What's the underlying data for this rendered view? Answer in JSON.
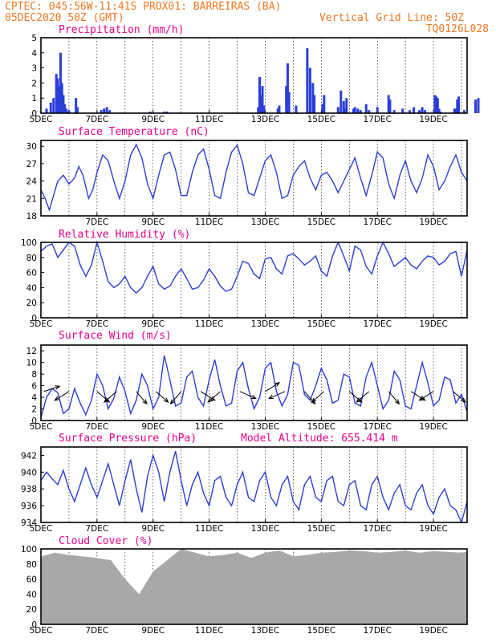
{
  "header": {
    "line1_left": "CPTEC:   045:56W-11:41S   PROX01: BARREIRAS (BA)",
    "line2_left": "05DEC2020 50Z (GMT)",
    "line2_right": "Vertical Grid Line: 50Z",
    "line3_right": "TQ0126L028"
  },
  "colors": {
    "header": "#f07820",
    "title": "#e8008a",
    "series": "#2a3ed8",
    "cloud": "#a8a8a8"
  },
  "chart_data": [
    {
      "type": "bar",
      "title": "Precipitation (mm/h)",
      "yticks": [
        0,
        1,
        2,
        3,
        4,
        5
      ],
      "ylim": [
        0,
        5
      ],
      "xticks": [
        "5DEC",
        "7DEC",
        "9DEC",
        "11DEC",
        "13DEC",
        "15DEC",
        "17DEC",
        "19DEC"
      ],
      "x": [
        0.2,
        0.35,
        0.45,
        0.55,
        0.6,
        0.65,
        0.7,
        0.75,
        0.8,
        0.85,
        0.9,
        0.95,
        1.0,
        1.25,
        1.3,
        2.15,
        2.25,
        2.35,
        2.45,
        3.9,
        4.4,
        4.5,
        7.75,
        7.8,
        7.85,
        7.9,
        7.95,
        8.45,
        8.5,
        8.75,
        8.8,
        8.85,
        9.1,
        9.5,
        9.6,
        9.7,
        9.75,
        10.05,
        10.1,
        10.6,
        10.7,
        10.8,
        10.85,
        10.9,
        11.15,
        11.2,
        11.3,
        11.4,
        11.6,
        11.7,
        12.0,
        12.4,
        12.45,
        12.6,
        12.9,
        13.15,
        13.3,
        13.5,
        13.6,
        13.7,
        14.05,
        14.1,
        14.15,
        14.2,
        14.25,
        14.75,
        14.8,
        14.85,
        14.9,
        15.1,
        15.5,
        15.6
      ],
      "values": [
        0.3,
        0.7,
        1.0,
        2.6,
        2.3,
        1.8,
        4.0,
        2.0,
        1.2,
        0.6,
        0.3,
        0.1,
        0.2,
        1.0,
        0.4,
        0.2,
        0.3,
        0.4,
        0.2,
        0.1,
        0.1,
        0.1,
        0.4,
        2.4,
        1.2,
        1.8,
        0.5,
        0.3,
        0.5,
        1.8,
        3.3,
        1.4,
        0.5,
        4.3,
        3.0,
        2.0,
        1.2,
        0.6,
        1.2,
        0.4,
        1.5,
        0.8,
        0.3,
        1.0,
        0.3,
        0.4,
        0.3,
        0.2,
        0.6,
        0.2,
        0.4,
        1.2,
        0.9,
        0.2,
        0.3,
        0.2,
        0.4,
        0.2,
        0.4,
        0.2,
        1.2,
        1.1,
        1.0,
        0.3,
        0.1,
        0.3,
        0.3,
        0.9,
        1.1,
        0.2,
        0.9,
        1.0
      ]
    },
    {
      "type": "line",
      "title": "Surface Temperature (nC)",
      "yticks": [
        18,
        21,
        24,
        27,
        30
      ],
      "ylim": [
        18,
        31
      ],
      "xticks": [
        "7DEC",
        "9DEC",
        "11DEC",
        "13DEC",
        "15DEC",
        "17DEC",
        "19DEC"
      ],
      "x": [
        0,
        0.15,
        0.3,
        0.45,
        0.6,
        0.8,
        1.0,
        1.2,
        1.35,
        1.5,
        1.7,
        1.85,
        2.0,
        2.2,
        2.4,
        2.6,
        2.8,
        3.0,
        3.2,
        3.4,
        3.6,
        3.8,
        4.0,
        4.2,
        4.4,
        4.6,
        4.8,
        5.0,
        5.2,
        5.4,
        5.6,
        5.8,
        6.0,
        6.2,
        6.4,
        6.6,
        6.8,
        7.0,
        7.2,
        7.4,
        7.6,
        7.8,
        8.0,
        8.2,
        8.4,
        8.6,
        8.8,
        9.0,
        9.2,
        9.4,
        9.6,
        9.8,
        10.0,
        10.2,
        10.4,
        10.6,
        10.8,
        11.0,
        11.2,
        11.4,
        11.6,
        11.8,
        12.0,
        12.2,
        12.4,
        12.6,
        12.8,
        13.0,
        13.2,
        13.4,
        13.6,
        13.8,
        14.0,
        14.2,
        14.4,
        14.6,
        14.8,
        15.0,
        15.2
      ],
      "values": [
        22.5,
        21.0,
        19.0,
        21.5,
        24.0,
        25.0,
        23.5,
        24.5,
        26.5,
        25.0,
        21.0,
        22.5,
        25.5,
        28.5,
        27.5,
        24.0,
        21.0,
        24.0,
        28.5,
        30.3,
        28.0,
        23.5,
        21.0,
        25.0,
        28.5,
        29.0,
        26.0,
        21.5,
        21.5,
        25.5,
        28.5,
        29.5,
        26.0,
        21.5,
        21.0,
        25.5,
        29.0,
        30.2,
        27.0,
        22.0,
        21.5,
        24.5,
        27.5,
        28.5,
        25.5,
        21.0,
        21.5,
        25.0,
        26.5,
        27.5,
        24.5,
        22.5,
        25.0,
        25.5,
        24.0,
        22.0,
        24.0,
        26.0,
        28.0,
        24.5,
        21.5,
        25.0,
        29.0,
        28.0,
        23.5,
        21.0,
        25.0,
        27.5,
        24.0,
        22.0,
        24.5,
        28.5,
        26.5,
        22.5,
        24.0,
        26.5,
        28.5,
        25.5,
        24.0
      ]
    },
    {
      "type": "line",
      "title": "Relative Humidity (%)",
      "yticks": [
        0,
        20,
        40,
        60,
        80,
        100
      ],
      "ylim": [
        0,
        100
      ],
      "xticks": [
        "5DEC",
        "7DEC",
        "9DEC",
        "11DEC",
        "13DEC",
        "15DEC",
        "17DEC",
        "19DEC"
      ],
      "x": [
        0,
        0.2,
        0.4,
        0.6,
        0.8,
        1.0,
        1.2,
        1.4,
        1.6,
        1.8,
        2.0,
        2.2,
        2.4,
        2.6,
        2.8,
        3.0,
        3.2,
        3.4,
        3.6,
        3.8,
        4.0,
        4.2,
        4.4,
        4.6,
        4.8,
        5.0,
        5.2,
        5.4,
        5.6,
        5.8,
        6.0,
        6.2,
        6.4,
        6.6,
        6.8,
        7.0,
        7.2,
        7.4,
        7.6,
        7.8,
        8.0,
        8.2,
        8.4,
        8.6,
        8.8,
        9.0,
        9.2,
        9.4,
        9.6,
        9.8,
        10.0,
        10.2,
        10.4,
        10.6,
        10.8,
        11.0,
        11.2,
        11.4,
        11.6,
        11.8,
        12.0,
        12.2,
        12.4,
        12.6,
        12.8,
        13.0,
        13.2,
        13.4,
        13.6,
        13.8,
        14.0,
        14.2,
        14.4,
        14.6,
        14.8,
        15.0,
        15.2
      ],
      "values": [
        88,
        95,
        98,
        80,
        90,
        100,
        95,
        70,
        55,
        70,
        100,
        75,
        48,
        40,
        45,
        55,
        40,
        33,
        40,
        55,
        68,
        45,
        38,
        42,
        55,
        65,
        52,
        38,
        40,
        50,
        65,
        55,
        42,
        35,
        38,
        55,
        75,
        72,
        58,
        52,
        78,
        80,
        65,
        58,
        82,
        85,
        78,
        70,
        75,
        82,
        62,
        55,
        82,
        100,
        82,
        62,
        95,
        90,
        68,
        58,
        82,
        100,
        85,
        68,
        74,
        80,
        70,
        65,
        75,
        82,
        80,
        70,
        75,
        85,
        88,
        55,
        90
      ]
    },
    {
      "type": "line",
      "title": "Surface Wind (m/s)",
      "yticks": [
        0,
        2,
        4,
        6,
        8,
        10,
        12
      ],
      "ylim": [
        0,
        13
      ],
      "xticks": [
        "5DEC",
        "7DEC",
        "9DEC",
        "11DEC",
        "13DEC",
        "15DEC",
        "17DEC",
        "19DEC"
      ],
      "x": [
        0,
        0.2,
        0.4,
        0.6,
        0.8,
        1.0,
        1.2,
        1.4,
        1.6,
        1.8,
        2.0,
        2.2,
        2.4,
        2.6,
        2.8,
        3.0,
        3.2,
        3.4,
        3.6,
        3.8,
        4.0,
        4.2,
        4.4,
        4.6,
        4.8,
        5.0,
        5.2,
        5.4,
        5.6,
        5.8,
        6.0,
        6.2,
        6.4,
        6.6,
        6.8,
        7.0,
        7.2,
        7.4,
        7.6,
        7.8,
        8.0,
        8.2,
        8.4,
        8.6,
        8.8,
        9.0,
        9.2,
        9.4,
        9.6,
        9.8,
        10.0,
        10.2,
        10.4,
        10.6,
        10.8,
        11.0,
        11.2,
        11.4,
        11.6,
        11.8,
        12.0,
        12.2,
        12.4,
        12.6,
        12.8,
        13.0,
        13.2,
        13.4,
        13.6,
        13.8,
        14.0,
        14.2,
        14.4,
        14.6,
        14.8,
        15.0,
        15.2
      ],
      "values": [
        0.5,
        4.0,
        5.5,
        4.8,
        1.2,
        2.0,
        5.5,
        3.0,
        1.0,
        3.5,
        8.0,
        6.0,
        2.0,
        3.8,
        7.5,
        5.0,
        1.2,
        3.5,
        8.0,
        6.0,
        2.0,
        4.0,
        11.2,
        7.0,
        2.5,
        3.0,
        7.5,
        8.5,
        4.0,
        2.5,
        7.0,
        10.5,
        6.0,
        2.5,
        3.0,
        8.5,
        10.0,
        5.5,
        2.0,
        4.0,
        9.0,
        10.0,
        5.0,
        2.5,
        4.5,
        10.0,
        9.5,
        4.5,
        3.5,
        6.0,
        9.0,
        7.0,
        3.0,
        3.5,
        8.0,
        7.5,
        3.0,
        2.5,
        7.5,
        10.0,
        6.0,
        2.0,
        3.5,
        8.5,
        7.0,
        2.5,
        2.0,
        6.0,
        10.0,
        6.5,
        2.5,
        3.5,
        7.5,
        7.0,
        3.0,
        4.5,
        1.5
      ],
      "arrows_at": [
        0.1,
        1.0,
        2.0,
        2.7,
        3.4,
        4.1,
        5.0,
        5.7,
        6.4,
        7.1,
        8.0,
        8.7,
        9.4,
        10.1,
        11.0,
        11.7,
        12.4,
        13.2,
        14.0,
        14.7
      ],
      "arrows_dir": [
        [
          0.9,
          -0.3
        ],
        [
          -0.8,
          0.5
        ],
        [
          0.7,
          0.6
        ],
        [
          -0.7,
          0.6
        ],
        [
          0.6,
          0.7
        ],
        [
          0.7,
          0.6
        ],
        [
          -0.6,
          0.7
        ],
        [
          0.8,
          0.5
        ],
        [
          -0.7,
          0.6
        ],
        [
          0.9,
          0.4
        ],
        [
          0.8,
          -0.5
        ],
        [
          -0.9,
          0.4
        ],
        [
          0.6,
          0.7
        ],
        [
          -0.7,
          0.6
        ],
        [
          0.7,
          0.6
        ],
        [
          -0.7,
          0.6
        ],
        [
          0.6,
          0.7
        ],
        [
          0.8,
          0.5
        ],
        [
          -0.8,
          0.5
        ],
        [
          0.7,
          0.6
        ]
      ]
    },
    {
      "type": "line",
      "title": "Surface Pressure (hPa)",
      "subtitle": "Model Altitude: 655.414 m",
      "yticks": [
        934,
        936,
        938,
        940,
        942
      ],
      "ylim": [
        934,
        943
      ],
      "xticks": [
        "5DEC",
        "7DEC",
        "9DEC",
        "11DEC",
        "13DEC",
        "15DEC",
        "17DEC",
        "19DEC"
      ],
      "x": [
        0,
        0.2,
        0.4,
        0.6,
        0.8,
        1.0,
        1.2,
        1.4,
        1.6,
        1.8,
        2.0,
        2.2,
        2.4,
        2.6,
        2.8,
        3.0,
        3.2,
        3.4,
        3.6,
        3.8,
        4.0,
        4.2,
        4.4,
        4.6,
        4.8,
        5.0,
        5.2,
        5.4,
        5.6,
        5.8,
        6.0,
        6.2,
        6.4,
        6.6,
        6.8,
        7.0,
        7.2,
        7.4,
        7.6,
        7.8,
        8.0,
        8.2,
        8.4,
        8.6,
        8.8,
        9.0,
        9.2,
        9.4,
        9.6,
        9.8,
        10.0,
        10.2,
        10.4,
        10.6,
        10.8,
        11.0,
        11.2,
        11.4,
        11.6,
        11.8,
        12.0,
        12.2,
        12.4,
        12.6,
        12.8,
        13.0,
        13.2,
        13.4,
        13.6,
        13.8,
        14.0,
        14.2,
        14.4,
        14.6,
        14.8,
        15.0,
        15.2
      ],
      "values": [
        939.0,
        940.0,
        939.2,
        938.5,
        940.2,
        938.0,
        936.5,
        938.5,
        940.5,
        938.5,
        937.0,
        939.0,
        941.0,
        938.5,
        936.0,
        939.0,
        941.5,
        938.0,
        935.2,
        939.5,
        942.0,
        940.0,
        936.5,
        940.0,
        942.5,
        939.0,
        936.0,
        938.5,
        940.0,
        937.5,
        936.0,
        939.0,
        939.5,
        937.0,
        936.0,
        938.5,
        940.0,
        937.0,
        936.5,
        939.0,
        940.0,
        937.0,
        936.0,
        938.5,
        939.5,
        936.5,
        935.5,
        938.5,
        939.5,
        937.0,
        936.5,
        939.0,
        939.5,
        936.5,
        936.0,
        938.5,
        939.0,
        936.0,
        935.5,
        938.5,
        939.5,
        937.0,
        935.5,
        937.5,
        938.5,
        936.0,
        935.5,
        937.5,
        938.5,
        936.0,
        935.0,
        937.0,
        938.0,
        936.0,
        935.5,
        934.0,
        936.5
      ]
    },
    {
      "type": "area",
      "title": "Cloud Cover (%)",
      "yticks": [
        0,
        20,
        40,
        60,
        80,
        100
      ],
      "ylim": [
        0,
        100
      ],
      "xticks": [
        "5DEC",
        "7DEC",
        "9DEC",
        "11DEC",
        "13DEC",
        "15DEC",
        "17DEC",
        "19DEC"
      ],
      "x": [
        0,
        0.5,
        1.0,
        1.5,
        2.0,
        2.5,
        3.0,
        3.5,
        4.0,
        4.5,
        5.0,
        5.5,
        6.0,
        6.5,
        7.0,
        7.5,
        8.0,
        8.5,
        9.0,
        9.5,
        10.0,
        10.5,
        11.0,
        11.5,
        12.0,
        12.5,
        13.0,
        13.5,
        14.0,
        14.5,
        15.0,
        15.2
      ],
      "values": [
        90,
        95,
        92,
        90,
        88,
        85,
        60,
        40,
        70,
        85,
        100,
        95,
        90,
        92,
        95,
        88,
        95,
        98,
        90,
        92,
        95,
        96,
        98,
        97,
        95,
        96,
        98,
        95,
        97,
        96,
        95,
        96
      ]
    }
  ]
}
